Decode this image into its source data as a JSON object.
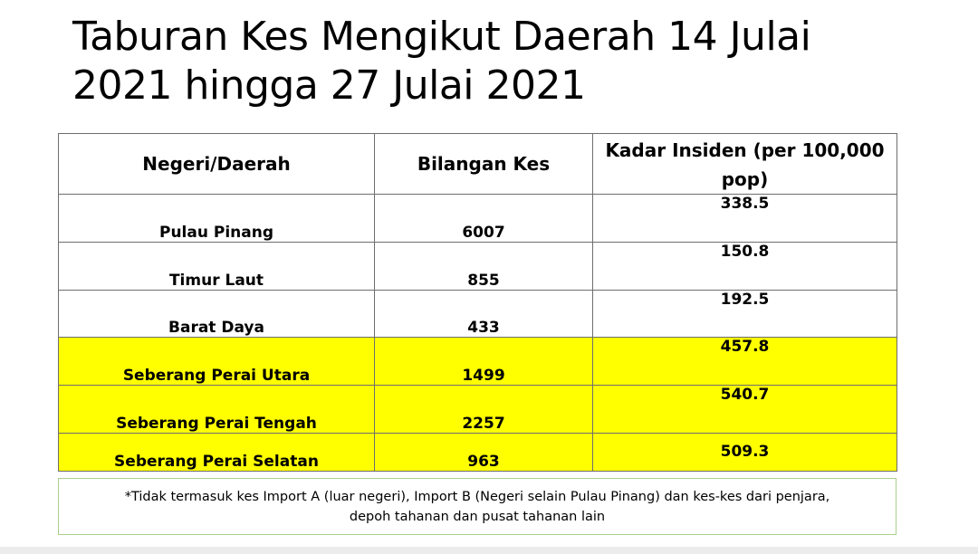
{
  "title": {
    "line1": "Taburan Kes Mengikut Daerah  14 Julai",
    "line2": "2021 hingga 27 Julai 2021"
  },
  "table": {
    "headers": {
      "region": "Negeri/Daerah",
      "cases": "Bilangan Kes",
      "rate": "Kadar Insiden (per 100,000 pop)"
    },
    "rows": [
      {
        "region": "Pulau Pinang",
        "cases": "6007",
        "rate": "338.5",
        "highlight": false
      },
      {
        "region": "Timur Laut",
        "cases": "855",
        "rate": "150.8",
        "highlight": false
      },
      {
        "region": "Barat Daya",
        "cases": "433",
        "rate": "192.5",
        "highlight": false
      },
      {
        "region": "Seberang Perai Utara",
        "cases": "1499",
        "rate": "457.8",
        "highlight": true
      },
      {
        "region": "Seberang Perai Tengah",
        "cases": "2257",
        "rate": "540.7",
        "highlight": true
      },
      {
        "region": "Seberang Perai Selatan",
        "cases": "963",
        "rate": "509.3",
        "highlight": true
      }
    ]
  },
  "footnote": {
    "line1": "*Tidak termasuk kes Import A (luar negeri), Import B (Negeri selain Pulau Pinang) dan kes-kes dari penjara,",
    "line2": "depoh tahanan dan pusat tahanan lain"
  },
  "colors": {
    "highlight": "#ffff00",
    "table_border": "#6e6e6e",
    "footnote_border": "#a9d08e"
  }
}
